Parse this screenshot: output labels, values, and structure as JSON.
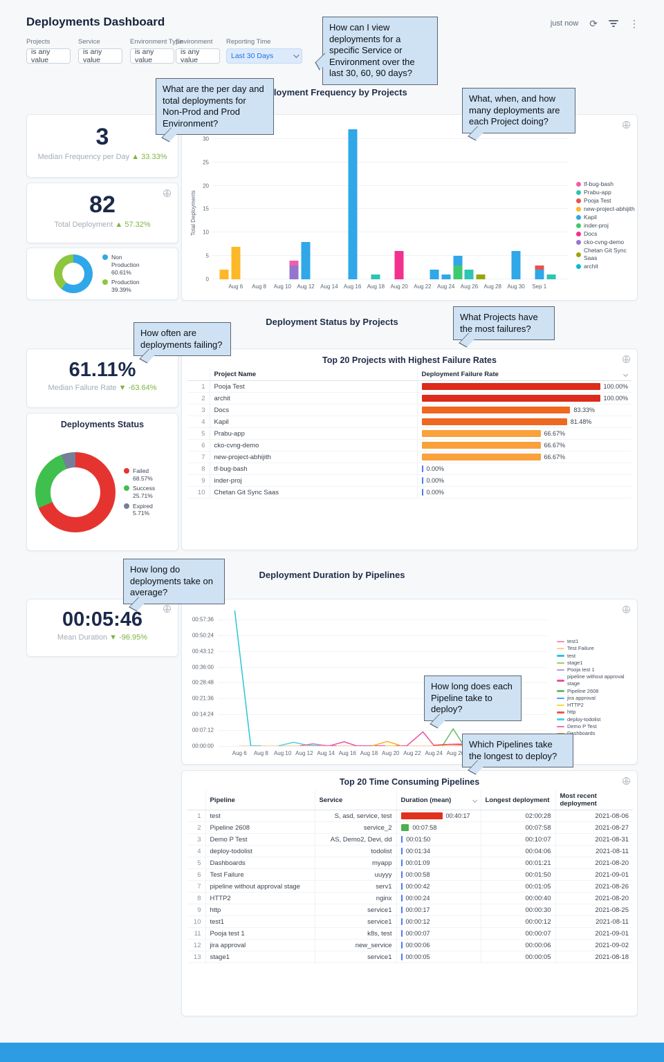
{
  "header": {
    "title": "Deployments Dashboard",
    "updated": "just now"
  },
  "icons": {
    "refresh": "⟳",
    "kebab": "⋮"
  },
  "filters": [
    {
      "label": "Projects",
      "value": "is any value"
    },
    {
      "label": "Service",
      "value": "is any value"
    },
    {
      "label": "Environment Type",
      "value": "is any value"
    },
    {
      "label": "Environment",
      "value": "is any value"
    },
    {
      "label": "Reporting Time",
      "value": "Last 30 Days"
    }
  ],
  "callouts": {
    "c1": "How can I view deployments for a specific Service or Environment over the last 30, 60, 90 days?",
    "c2": "What are the per day and total deployments for Non-Prod and Prod Environment?",
    "c3": "What, when, and how many deployments are each Project doing?",
    "c4": "How often are deployments failing?",
    "c5": "What Projects have the most failures?",
    "c6": "How long do deployments take on average?",
    "c7": "How long does each Pipeline take to deploy?",
    "c8": "Which Pipelines take the longest to deploy?"
  },
  "kpis": {
    "median_frequency": {
      "value": "3",
      "label": "Median Frequency per Day",
      "delta": "▲ 33.33%"
    },
    "total_deployment": {
      "value": "82",
      "label": "Total Deployment",
      "delta": "▲ 57.32%"
    },
    "median_failure": {
      "value": "61.11%",
      "label": "Median Failure Rate",
      "delta": "▼ -63.64%"
    },
    "mean_duration": {
      "value": "00:05:46",
      "label": "Mean Duration",
      "delta": "▼ -96.95%"
    }
  },
  "chart_data": [
    {
      "id": "environment-split",
      "type": "pie",
      "slices": [
        {
          "label": "Non Production 60.61%",
          "pct": 60.61,
          "color": "#2fa7e8"
        },
        {
          "label": "Production 39.39%",
          "pct": 39.39,
          "color": "#8dc63f"
        }
      ],
      "legend_position": "right"
    },
    {
      "id": "deployment-frequency",
      "type": "bar",
      "stacked": true,
      "title": "Deployment Frequency by Projects",
      "ylabel": "Total Deployments",
      "ylim": [
        0,
        32.5
      ],
      "yticks": [
        0,
        5,
        10,
        15,
        20,
        25,
        30
      ],
      "x_domain": [
        0,
        30.5
      ],
      "xticks": [
        {
          "label": "Aug 6",
          "x": 2
        },
        {
          "label": "Aug 8",
          "x": 4
        },
        {
          "label": "Aug 10",
          "x": 6
        },
        {
          "label": "Aug 12",
          "x": 8
        },
        {
          "label": "Aug 14",
          "x": 10
        },
        {
          "label": "Aug 16",
          "x": 12
        },
        {
          "label": "Aug 18",
          "x": 14
        },
        {
          "label": "Aug 20",
          "x": 16
        },
        {
          "label": "Aug 22",
          "x": 18
        },
        {
          "label": "Aug 24",
          "x": 20
        },
        {
          "label": "Aug 26",
          "x": 22
        },
        {
          "label": "Aug 28",
          "x": 24
        },
        {
          "label": "Aug 30",
          "x": 26
        },
        {
          "label": "Sep 1",
          "x": 28
        }
      ],
      "legend": [
        {
          "name": "tf-bug-bash",
          "color": "#ef5fa7"
        },
        {
          "name": "Prabu-app",
          "color": "#2ec4b6"
        },
        {
          "name": "Pooja Test",
          "color": "#e8534a"
        },
        {
          "name": "new-project-abhijith",
          "color": "#fcb826"
        },
        {
          "name": "Kapil",
          "color": "#2fa7e8"
        },
        {
          "name": "inder-proj",
          "color": "#3dc96d"
        },
        {
          "name": "Docs",
          "color": "#f2318f"
        },
        {
          "name": "cko-cvng-demo",
          "color": "#9575cd"
        },
        {
          "name": "Chetan Git Sync Saas",
          "color": "#9aa50a"
        },
        {
          "name": "archit",
          "color": "#00bcd4"
        }
      ],
      "bars": [
        {
          "date": "Aug 5",
          "x": 1,
          "stacks": [
            {
              "project": "new-project-abhijith",
              "value": 2
            }
          ]
        },
        {
          "date": "Aug 6",
          "x": 2,
          "stacks": [
            {
              "project": "new-project-abhijith",
              "value": 7
            }
          ]
        },
        {
          "date": "Aug 11",
          "x": 7,
          "stacks": [
            {
              "project": "cko-cvng-demo",
              "value": 3
            },
            {
              "project": "tf-bug-bash",
              "value": 1
            }
          ]
        },
        {
          "date": "Aug 12",
          "x": 8,
          "stacks": [
            {
              "project": "Kapil",
              "value": 8
            }
          ]
        },
        {
          "date": "Aug 16",
          "x": 12,
          "stacks": [
            {
              "project": "Kapil",
              "value": 32
            }
          ]
        },
        {
          "date": "Aug 18",
          "x": 14,
          "stacks": [
            {
              "project": "Prabu-app",
              "value": 1
            }
          ]
        },
        {
          "date": "Aug 20",
          "x": 16,
          "stacks": [
            {
              "project": "Docs",
              "value": 6
            }
          ]
        },
        {
          "date": "Aug 23",
          "x": 19,
          "stacks": [
            {
              "project": "Kapil",
              "value": 2
            }
          ]
        },
        {
          "date": "Aug 24",
          "x": 20,
          "stacks": [
            {
              "project": "Kapil",
              "value": 1
            }
          ]
        },
        {
          "date": "Aug 25",
          "x": 21,
          "stacks": [
            {
              "project": "inder-proj",
              "value": 3
            },
            {
              "project": "Kapil",
              "value": 2
            }
          ]
        },
        {
          "date": "Aug 26",
          "x": 22,
          "stacks": [
            {
              "project": "Prabu-app",
              "value": 2
            }
          ]
        },
        {
          "date": "Aug 27",
          "x": 23,
          "stacks": [
            {
              "project": "Chetan Git Sync Saas",
              "value": 1
            }
          ]
        },
        {
          "date": "Aug 30",
          "x": 26,
          "stacks": [
            {
              "project": "Kapil",
              "value": 6
            }
          ]
        },
        {
          "date": "Sep 1",
          "x": 28,
          "stacks": [
            {
              "project": "Kapil",
              "value": 2
            },
            {
              "project": "Pooja Test",
              "value": 1
            }
          ]
        },
        {
          "date": "Sep 2",
          "x": 29,
          "stacks": [
            {
              "project": "Prabu-app",
              "value": 1
            }
          ]
        }
      ]
    },
    {
      "id": "deployments-status",
      "type": "pie",
      "title": "Deployments Status",
      "slices": [
        {
          "label": "Failed 68.57%",
          "pct": 68.57,
          "color": "#e53430"
        },
        {
          "label": "Success 25.71%",
          "pct": 25.71,
          "color": "#3fbf4d"
        },
        {
          "label": "Expired 5.71%",
          "pct": 5.71,
          "color": "#767f99"
        }
      ],
      "legend_position": "right"
    },
    {
      "id": "failure-rates",
      "type": "table",
      "title": "Top 20 Projects with Highest Failure Rates",
      "columns": [
        "Project Name",
        "Deployment Failure Rate"
      ],
      "rows": [
        {
          "rank": 1,
          "project": "Pooja Test",
          "rate": 100.0,
          "rate_label": "100.00%",
          "bar_color": "#dc2b1c"
        },
        {
          "rank": 2,
          "project": "archit",
          "rate": 100.0,
          "rate_label": "100.00%",
          "bar_color": "#dc2b1c"
        },
        {
          "rank": 3,
          "project": "Docs",
          "rate": 83.33,
          "rate_label": "83.33%",
          "bar_color": "#ee6820"
        },
        {
          "rank": 4,
          "project": "Kapil",
          "rate": 81.48,
          "rate_label": "81.48%",
          "bar_color": "#ee6820"
        },
        {
          "rank": 5,
          "project": "Prabu-app",
          "rate": 66.67,
          "rate_label": "66.67%",
          "bar_color": "#f9a13b"
        },
        {
          "rank": 6,
          "project": "cko-cvng-demo",
          "rate": 66.67,
          "rate_label": "66.67%",
          "bar_color": "#f9a13b"
        },
        {
          "rank": 7,
          "project": "new-project-abhijith",
          "rate": 66.67,
          "rate_label": "66.67%",
          "bar_color": "#f9a13b"
        },
        {
          "rank": 8,
          "project": "tf-bug-bash",
          "rate": 0.0,
          "rate_label": "0.00%",
          "bar_color": "#4e79f4"
        },
        {
          "rank": 9,
          "project": "inder-proj",
          "rate": 0.0,
          "rate_label": "0.00%",
          "bar_color": "#4e79f4"
        },
        {
          "rank": 10,
          "project": "Chetan Git Sync Saas",
          "rate": 0.0,
          "rate_label": "0.00%",
          "bar_color": "#4e79f4"
        }
      ]
    },
    {
      "id": "duration-by-pipeline",
      "type": "line",
      "title": "Deployment Duration by Pipelines",
      "ylim_seconds": [
        0,
        3700
      ],
      "yticks": [
        {
          "label": "00:57:36",
          "s": 3456
        },
        {
          "label": "00:50:24",
          "s": 3024
        },
        {
          "label": "00:43:12",
          "s": 2592
        },
        {
          "label": "00:36:00",
          "s": 2160
        },
        {
          "label": "00:28:48",
          "s": 1728
        },
        {
          "label": "00:21:36",
          "s": 1296
        },
        {
          "label": "00:14:24",
          "s": 864
        },
        {
          "label": "00:07:12",
          "s": 432
        },
        {
          "label": "00:00:00",
          "s": 0
        }
      ],
      "x_domain": [
        0,
        30.5
      ],
      "xticks": [
        {
          "label": "Aug 6",
          "x": 2
        },
        {
          "label": "Aug 8",
          "x": 4
        },
        {
          "label": "Aug 10",
          "x": 6
        },
        {
          "label": "Aug 12",
          "x": 8
        },
        {
          "label": "Aug 14",
          "x": 10
        },
        {
          "label": "Aug 16",
          "x": 12
        },
        {
          "label": "Aug 18",
          "x": 14
        },
        {
          "label": "Aug 20",
          "x": 16
        },
        {
          "label": "Aug 22",
          "x": 18
        },
        {
          "label": "Aug 24",
          "x": 20
        },
        {
          "label": "Aug 26",
          "x": 22
        },
        {
          "label": "Aug 28",
          "x": 24
        },
        {
          "label": "Aug 30",
          "x": 26
        },
        {
          "label": "Sep 1",
          "x": 28
        }
      ],
      "series": [
        {
          "name": "test1",
          "color": "#f48fb1",
          "points": [
            [
              8,
              4
            ],
            [
              10,
              4
            ]
          ]
        },
        {
          "name": "Test Failure",
          "color": "#ffcc9c",
          "points": [
            [
              2,
              2
            ],
            [
              30,
              2
            ]
          ]
        },
        {
          "name": "test",
          "color": "#26c6da",
          "points": [
            [
              1.55,
              3720
            ],
            [
              3.05,
              0
            ],
            [
              4,
              0
            ]
          ]
        },
        {
          "name": "stage1",
          "color": "#9ccc65",
          "points": [
            [
              13.5,
              3
            ],
            [
              15,
              3
            ]
          ]
        },
        {
          "name": "Pooja test 1",
          "color": "#b39ddb",
          "points": [
            [
              27,
              4
            ],
            [
              28.5,
              4
            ]
          ]
        },
        {
          "name": "pipeline without approval stage",
          "color": "#ec4f9e",
          "points": [
            [
              10.3,
              4
            ],
            [
              11.7,
              115
            ],
            [
              12.8,
              8
            ],
            [
              17.5,
              6
            ],
            [
              19,
              385
            ],
            [
              20,
              20
            ],
            [
              21,
              40
            ],
            [
              22.3,
              55
            ],
            [
              23.5,
              35
            ],
            [
              24.5,
              8
            ]
          ]
        },
        {
          "name": "Pipeline 2608",
          "color": "#66bb6a",
          "points": [
            [
              20.8,
              4
            ],
            [
              21.8,
              470
            ],
            [
              22.8,
              4
            ]
          ]
        },
        {
          "name": "jira approval",
          "color": "#42a5f5",
          "points": [
            [
              28.5,
              3
            ],
            [
              29.5,
              3
            ]
          ]
        },
        {
          "name": "HTTP2",
          "color": "#fdd835",
          "points": [
            [
              15.5,
              3
            ],
            [
              16.5,
              3
            ]
          ]
        },
        {
          "name": "http",
          "color": "#ef5350",
          "points": [
            [
              20,
              18
            ],
            [
              21.5,
              45
            ],
            [
              23,
              30
            ],
            [
              24.5,
              15
            ],
            [
              26,
              4
            ]
          ]
        },
        {
          "name": "deploy-todolist",
          "color": "#4dd0e1",
          "points": [
            [
              5.6,
              4
            ],
            [
              7,
              100
            ],
            [
              8.3,
              25
            ],
            [
              9.5,
              4
            ]
          ]
        },
        {
          "name": "Demo P Test",
          "color": "#f06eaa",
          "points": [
            [
              7.6,
              6
            ],
            [
              8.8,
              62
            ],
            [
              10,
              12
            ],
            [
              11,
              4
            ]
          ]
        },
        {
          "name": "Dashboards",
          "color": "#ffa726",
          "points": [
            [
              14.3,
              4
            ],
            [
              15.7,
              125
            ],
            [
              17,
              6
            ]
          ]
        }
      ]
    },
    {
      "id": "time-consuming-pipelines",
      "type": "table",
      "title": "Top 20 Time Consuming Pipelines",
      "columns": [
        "Pipeline",
        "Service",
        "Duration (mean)",
        "Longest deployment",
        "Most recent deployment"
      ],
      "max_duration_s": 2417,
      "rows": [
        {
          "rank": 1,
          "pipeline": "test",
          "service": "S, asd, service, test",
          "duration": "00:40:17",
          "duration_s": 2417,
          "bar_color": "#e0301e",
          "longest": "02:00:28",
          "recent": "2021-08-06"
        },
        {
          "rank": 2,
          "pipeline": "Pipeline 2608",
          "service": "service_2",
          "duration": "00:07:58",
          "duration_s": 478,
          "bar_color": "#4caf50",
          "longest": "00:07:58",
          "recent": "2021-08-27"
        },
        {
          "rank": 3,
          "pipeline": "Demo P Test",
          "service": "AS, Demo2, Devi, dd",
          "duration": "00:01:50",
          "duration_s": 110,
          "bar_color": "#4e79f4",
          "longest": "00:10:07",
          "recent": "2021-08-31"
        },
        {
          "rank": 4,
          "pipeline": "deploy-todolist",
          "service": "todolist",
          "duration": "00:01:34",
          "duration_s": 94,
          "bar_color": "#4e79f4",
          "longest": "00:04:06",
          "recent": "2021-08-11"
        },
        {
          "rank": 5,
          "pipeline": "Dashboards",
          "service": "myapp",
          "duration": "00:01:09",
          "duration_s": 69,
          "bar_color": "#4e79f4",
          "longest": "00:01:21",
          "recent": "2021-08-20"
        },
        {
          "rank": 6,
          "pipeline": "Test Failure",
          "service": "uuyyy",
          "duration": "00:00:58",
          "duration_s": 58,
          "bar_color": "#4e79f4",
          "longest": "00:01:50",
          "recent": "2021-09-01"
        },
        {
          "rank": 7,
          "pipeline": "pipeline without approval stage",
          "service": "serv1",
          "duration": "00:00:42",
          "duration_s": 42,
          "bar_color": "#4e79f4",
          "longest": "00:01:05",
          "recent": "2021-08-26"
        },
        {
          "rank": 8,
          "pipeline": "HTTP2",
          "service": "nginx",
          "duration": "00:00:24",
          "duration_s": 24,
          "bar_color": "#4e79f4",
          "longest": "00:00:40",
          "recent": "2021-08-20"
        },
        {
          "rank": 9,
          "pipeline": "http",
          "service": "service1",
          "duration": "00:00:17",
          "duration_s": 17,
          "bar_color": "#4e79f4",
          "longest": "00:00:30",
          "recent": "2021-08-25"
        },
        {
          "rank": 10,
          "pipeline": "test1",
          "service": "service1",
          "duration": "00:00:12",
          "duration_s": 12,
          "bar_color": "#4e79f4",
          "longest": "00:00:12",
          "recent": "2021-08-11"
        },
        {
          "rank": 11,
          "pipeline": "Pooja test 1",
          "service": "k8s, test",
          "duration": "00:00:07",
          "duration_s": 7,
          "bar_color": "#4e79f4",
          "longest": "00:00:07",
          "recent": "2021-09-01"
        },
        {
          "rank": 12,
          "pipeline": "jira approval",
          "service": "new_service",
          "duration": "00:00:06",
          "duration_s": 6,
          "bar_color": "#4e79f4",
          "longest": "00:00:06",
          "recent": "2021-09-02"
        },
        {
          "rank": 13,
          "pipeline": "stage1",
          "service": "service1",
          "duration": "00:00:05",
          "duration_s": 5,
          "bar_color": "#4e79f4",
          "longest": "00:00:05",
          "recent": "2021-08-18"
        }
      ]
    }
  ]
}
